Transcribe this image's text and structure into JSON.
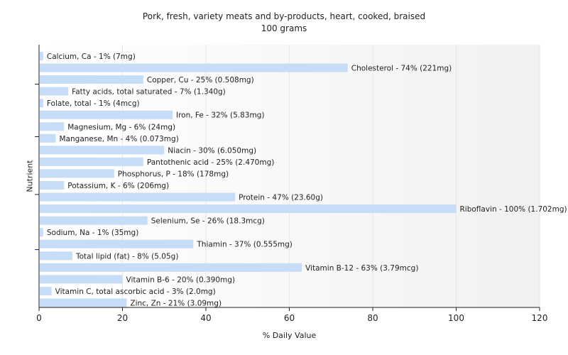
{
  "chart_data": {
    "type": "bar",
    "orientation": "horizontal",
    "title": "Pork, fresh, variety meats and by-products, heart, cooked, braised",
    "subtitle": "100 grams",
    "xlabel": "% Daily Value",
    "ylabel": "Nutrient",
    "xlim": [
      0,
      120
    ],
    "xticks": [
      0,
      20,
      40,
      60,
      80,
      100,
      120
    ],
    "grid": true,
    "bar_color": "#c6dcf7",
    "categories": [
      "Calcium, Ca",
      "Cholesterol",
      "Copper, Cu",
      "Fatty acids, total saturated",
      "Folate, total",
      "Iron, Fe",
      "Magnesium, Mg",
      "Manganese, Mn",
      "Niacin",
      "Pantothenic acid",
      "Phosphorus, P",
      "Potassium, K",
      "Protein",
      "Riboflavin",
      "Selenium, Se",
      "Sodium, Na",
      "Thiamin",
      "Total lipid (fat)",
      "Vitamin B-12",
      "Vitamin B-6",
      "Vitamin C, total ascorbic acid",
      "Zinc, Zn"
    ],
    "values": [
      1,
      74,
      25,
      7,
      1,
      32,
      6,
      4,
      30,
      25,
      18,
      6,
      47,
      100,
      26,
      1,
      37,
      8,
      63,
      20,
      3,
      21
    ],
    "labels": [
      "Calcium, Ca - 1% (7mg)",
      "Cholesterol - 74% (221mg)",
      "Copper, Cu - 25% (0.508mg)",
      "Fatty acids, total saturated - 7% (1.340g)",
      "Folate, total - 1% (4mcg)",
      "Iron, Fe - 32% (5.83mg)",
      "Magnesium, Mg - 6% (24mg)",
      "Manganese, Mn - 4% (0.073mg)",
      "Niacin - 30% (6.050mg)",
      "Pantothenic acid - 25% (2.470mg)",
      "Phosphorus, P - 18% (178mg)",
      "Potassium, K - 6% (206mg)",
      "Protein - 47% (23.60g)",
      "Riboflavin - 100% (1.702mg)",
      "Selenium, Se - 26% (18.3mcg)",
      "Sodium, Na - 1% (35mg)",
      "Thiamin - 37% (0.555mg)",
      "Total lipid (fat) - 8% (5.05g)",
      "Vitamin B-12 - 63% (3.79mcg)",
      "Vitamin B-6 - 20% (0.390mg)",
      "Vitamin C, total ascorbic acid - 3% (2.0mg)",
      "Zinc, Zn - 21% (3.09mg)"
    ]
  }
}
